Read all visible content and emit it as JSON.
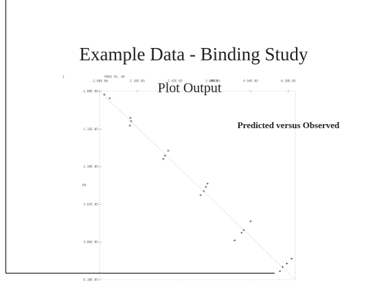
{
  "chart_data": {
    "type": "scatter",
    "title": "Example Data - Binding Study",
    "subtitle": "Plot Output",
    "annotation": "Predicted versus Observed",
    "page_marker": "1",
    "plot_header": "PRED VS.  DV",
    "x_label": "PRED",
    "y_label": "DV",
    "x": [
      6e-07,
      2.4e-06,
      9.3e-06,
      9.5e-06,
      9.1e-06,
      2.19e-05,
      2.08e-05,
      2.03e-05,
      3.5e-05,
      3.45e-05,
      3.38e-05,
      3.27e-05,
      4.94e-05,
      4.71e-05,
      4.64e-05,
      4.41e-05,
      6.31e-05,
      6.15e-05,
      6.01e-05,
      5.92e-05
    ],
    "values": [
      1.3e-07,
      1.3e-06,
      7.8e-06,
      8.9e-06,
      1.03e-05,
      1.86e-05,
      2.02e-05,
      2.13e-05,
      2.94e-05,
      3.05e-05,
      3.19e-05,
      3.32e-05,
      4.18e-05,
      4.47e-05,
      4.56e-05,
      4.81e-05,
      5.41e-05,
      5.57e-05,
      5.68e-05,
      5.82e-05
    ],
    "color": "#333333",
    "xlim": [
      -1e-06,
      6.43e-05
    ],
    "ylim": [
      -1e-06,
      6.1e-05
    ],
    "y_inverted": true,
    "xticks": [
      {
        "value": -1e-06,
        "label": "-1.00E-06"
      },
      {
        "value": 1.16e-05,
        "label": "1.16E-05"
      },
      {
        "value": 2.42e-05,
        "label": "2.42E-05"
      },
      {
        "value": 3.68e-05,
        "label": "3.68E-05"
      },
      {
        "value": 4.94e-05,
        "label": "4.94E-05"
      },
      {
        "value": 6.2e-05,
        "label": "6.20E-05"
      }
    ],
    "yticks": [
      {
        "value": -1e-06,
        "label": "-1.00E-06"
      },
      {
        "value": 1.15e-05,
        "label": "1.15E-05"
      },
      {
        "value": 2.38e-05,
        "label": "2.38E-05"
      },
      {
        "value": 3.62e-05,
        "label": "3.62E-05"
      },
      {
        "value": 4.86e-05,
        "label": "4.86E-05"
      },
      {
        "value": 6.1e-05,
        "label": "6.10E-05"
      }
    ]
  }
}
